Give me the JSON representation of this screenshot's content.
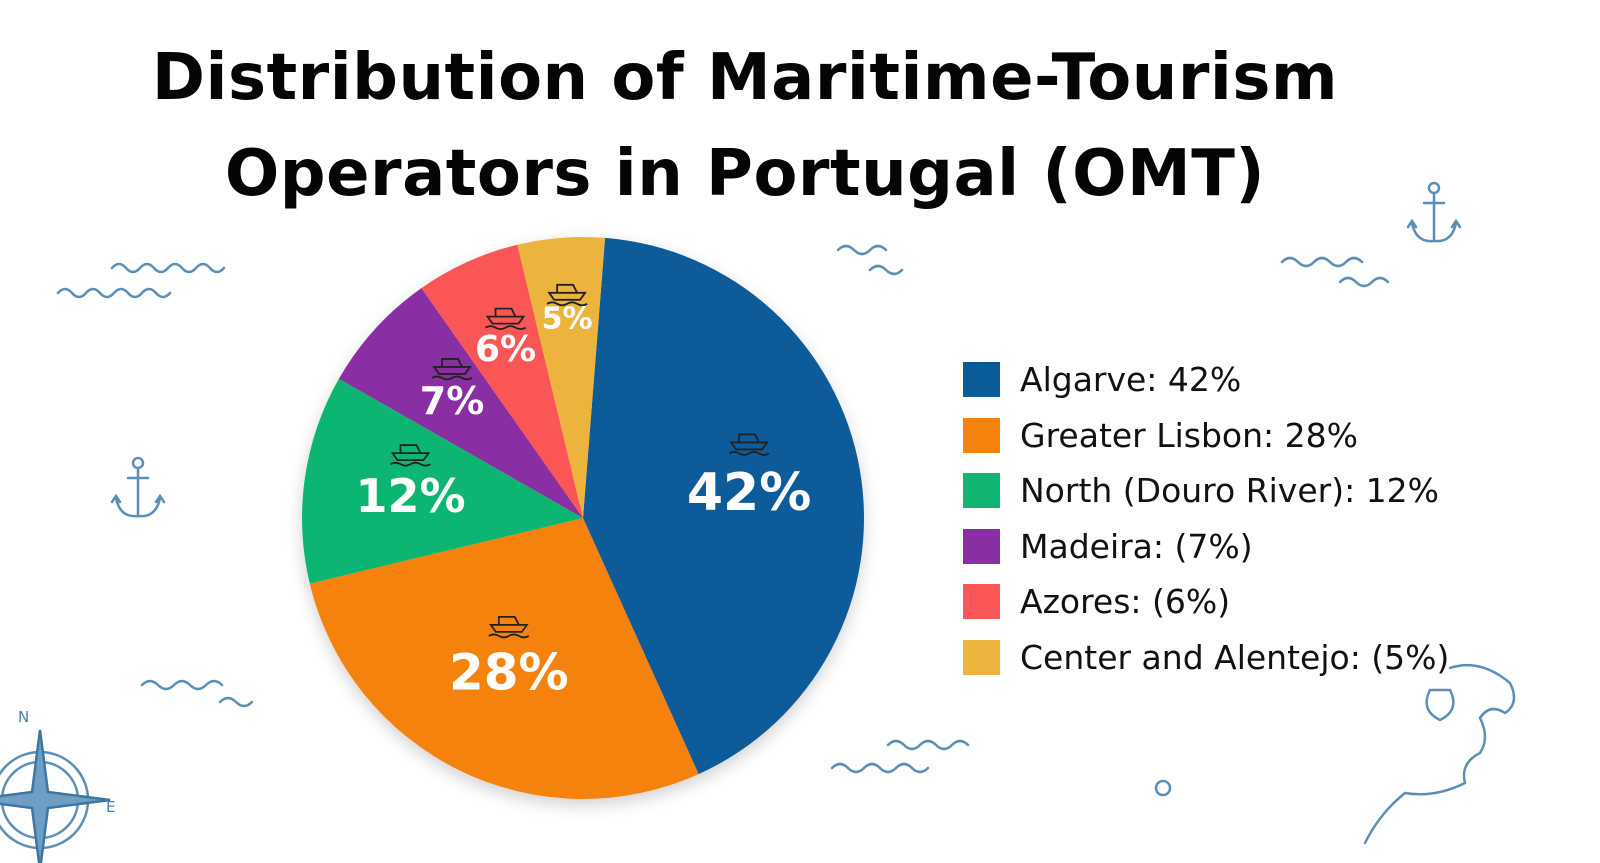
{
  "chart_data": {
    "type": "pie",
    "title": "Distribution of Maritime-Tourism Operators in Portugal (OMT)",
    "title_lines": [
      "Distribution of Maritime-Tourism",
      "Operators in Portugal (OMT)"
    ],
    "categories": [
      "Algarve",
      "Greater Lisbon",
      "North (Douro River)",
      "Madeira",
      "Azores",
      "Center and Alentejo"
    ],
    "values": [
      42,
      28,
      12,
      7,
      6,
      5
    ],
    "unit": "%",
    "data_labels": [
      "42%",
      "28%",
      "12%",
      "7%",
      "6%",
      "5%"
    ],
    "slice_icons": [
      "yacht-icon",
      "lighthouse-harbor-icon",
      "river-boat-icon",
      "island-ship-icon",
      "volcano-whale-icon",
      "lighthouse-coast-icon"
    ],
    "colors": [
      "#0a5c99",
      "#f5820d",
      "#10b572",
      "#8a2ea3",
      "#fb5656",
      "#edb43d"
    ],
    "label_colors": [
      "#ffffff",
      "#ffffff",
      "#ffffff",
      "#ffffff",
      "#ffffff",
      "#ffffff"
    ],
    "legend": {
      "placement": "right",
      "entries": [
        "Algarve: 42%",
        "Greater Lisbon: 28%",
        "North (Douro River): 12%",
        "Madeira: (7%)",
        "Azores: (6%)",
        "Center and Alentejo: (5%)"
      ]
    }
  },
  "decor": {
    "compass_n": "N",
    "compass_e": "E",
    "wave_color": "#5b8fb8"
  }
}
